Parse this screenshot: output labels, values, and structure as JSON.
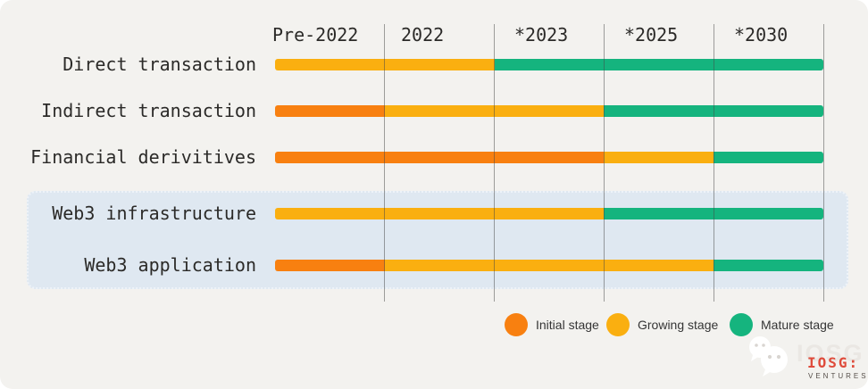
{
  "chart_data": {
    "type": "bar",
    "subtype": "horizontal-stage-timeline",
    "title": "",
    "columns": [
      "Pre-2022",
      "2022",
      "*2023",
      "*2025",
      "*2030"
    ],
    "rows": [
      {
        "label": "Direct transaction",
        "highlighted": false,
        "segments": [
          {
            "stage": "growing",
            "cols": 2
          },
          {
            "stage": "mature",
            "cols": 3
          }
        ]
      },
      {
        "label": "Indirect transaction",
        "highlighted": false,
        "segments": [
          {
            "stage": "initial",
            "cols": 1
          },
          {
            "stage": "growing",
            "cols": 2
          },
          {
            "stage": "mature",
            "cols": 2
          }
        ]
      },
      {
        "label": "Financial derivitives",
        "highlighted": false,
        "segments": [
          {
            "stage": "initial",
            "cols": 3
          },
          {
            "stage": "growing",
            "cols": 1
          },
          {
            "stage": "mature",
            "cols": 1
          }
        ]
      },
      {
        "label": "Web3 infrastructure",
        "highlighted": true,
        "segments": [
          {
            "stage": "growing",
            "cols": 3
          },
          {
            "stage": "mature",
            "cols": 2
          }
        ]
      },
      {
        "label": "Web3 application",
        "highlighted": true,
        "segments": [
          {
            "stage": "initial",
            "cols": 1
          },
          {
            "stage": "growing",
            "cols": 3
          },
          {
            "stage": "mature",
            "cols": 1
          }
        ]
      }
    ],
    "legend": [
      {
        "stage": "initial",
        "label": "Initial stage"
      },
      {
        "stage": "growing",
        "label": "Growing stage"
      },
      {
        "stage": "mature",
        "label": "Mature stage"
      }
    ],
    "colors": {
      "initial": "#F88010",
      "growing": "#FAAF10",
      "mature": "#15B47E",
      "background": "#F3F2EF",
      "highlight_box": "#DFE8F1",
      "gridline": "rgba(70,70,70,0.5)"
    },
    "legend_position": "bottom-right",
    "grid": true
  },
  "watermark": {
    "icon": "wechat-icon",
    "brand_gray": "IOSG",
    "brand_red": "IOSG:",
    "brand_sub": "VENTURES"
  }
}
